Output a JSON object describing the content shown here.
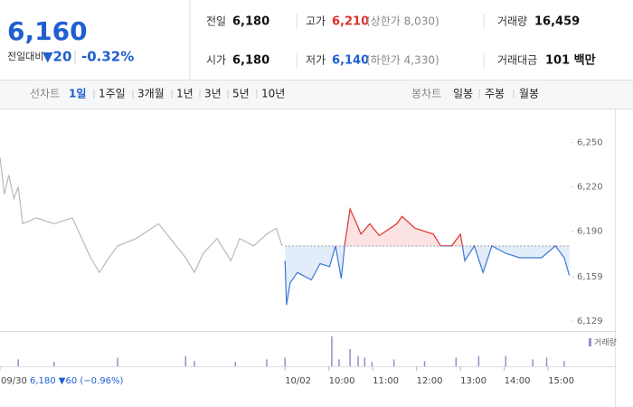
{
  "header": {
    "price": "6,160",
    "change_label": "전일대비",
    "change": "▼20",
    "change_pct": "-0.32%",
    "stats": [
      {
        "label": "전일",
        "value": "6,180"
      },
      {
        "label": "고가",
        "value": "6,210",
        "note": "(상한가 8,030)"
      },
      {
        "label": "거래량",
        "value": "16,459"
      },
      {
        "label": "시가",
        "value": "6,180"
      },
      {
        "label": "저가",
        "value": "6,140",
        "note": "(하한가 4,330)"
      },
      {
        "label": "거래대금",
        "value": "101 백만"
      }
    ]
  },
  "tabs": {
    "line_label": "선차트",
    "line": [
      "1일",
      "1주일",
      "3개월",
      "1년",
      "3년",
      "5년",
      "10년"
    ],
    "candle_label": "봉차트",
    "candle": [
      "일봉",
      "주봉",
      "월봉"
    ]
  },
  "chart_data": {
    "type": "line",
    "xlim": [
      -390,
      392
    ],
    "ylim": [
      6123,
      6270
    ],
    "yticks": [
      {
        "value": 6250,
        "label": "6,250"
      },
      {
        "value": 6220,
        "label": "6,220"
      },
      {
        "value": 6190,
        "label": "6,190"
      },
      {
        "value": 6159,
        "label": "6,159"
      },
      {
        "value": 6129,
        "label": "6,129"
      }
    ],
    "xticks": [
      {
        "value": -390,
        "label": "09/30"
      },
      {
        "value": 0,
        "label": "10/02"
      },
      {
        "value": 60,
        "label": "10:00"
      },
      {
        "value": 120,
        "label": "11:00"
      },
      {
        "value": 180,
        "label": "12:00"
      },
      {
        "value": 240,
        "label": "13:00"
      },
      {
        "value": 300,
        "label": "14:00"
      },
      {
        "value": 360,
        "label": "15:00"
      }
    ],
    "annotation": "6,180 ▼60 (−0.96%)",
    "baseline": 6180,
    "up_color": "#e0302b",
    "down_color": "#3b78d8",
    "up_fill": "#fbe3e3",
    "down_fill": "#e3ecf9",
    "series": [
      {
        "color": "#b9b9b9",
        "x": [
          -390,
          -384,
          -378,
          -371,
          -365,
          -359,
          -340,
          -316,
          -291,
          -266,
          -254,
          -241,
          -229,
          -204,
          -173,
          -149,
          -136,
          -124,
          -112,
          -93,
          -74,
          -62,
          -43,
          -25,
          -12,
          -4
        ],
        "values": [
          6240,
          6215,
          6228,
          6212,
          6220,
          6195,
          6199,
          6195,
          6199,
          6172,
          6162,
          6172,
          6180,
          6185,
          6195,
          6180,
          6172,
          6162,
          6175,
          6185,
          6170,
          6185,
          6180,
          6188,
          6192,
          6180
        ]
      },
      {
        "color": "split",
        "x": [
          0,
          2,
          7,
          17,
          36,
          48,
          61,
          69,
          77,
          82,
          89,
          98,
          104,
          116,
          129,
          153,
          160,
          178,
          203,
          213,
          228,
          240,
          246,
          259,
          271,
          283,
          302,
          321,
          351,
          370,
          382,
          389
        ],
        "values": [
          6170,
          6140,
          6155,
          6162,
          6157,
          6168,
          6166,
          6180,
          6158,
          6182,
          6205,
          6195,
          6188,
          6195,
          6187,
          6195,
          6200,
          6192,
          6188,
          6180,
          6180,
          6188,
          6170,
          6180,
          6162,
          6180,
          6175,
          6172,
          6172,
          6180,
          6172,
          6160
        ]
      }
    ],
    "volume": {
      "name": "거래량",
      "color": "#9b8bc9",
      "ylim": [
        0,
        40
      ],
      "x": [
        -365,
        -316,
        -229,
        -136,
        -124,
        -68,
        -25,
        0,
        64,
        74,
        89,
        100,
        109,
        119,
        149,
        191,
        234,
        265,
        302,
        339,
        358,
        382
      ],
      "values": [
        8,
        5,
        10,
        12,
        6,
        5,
        8,
        10,
        35,
        8,
        20,
        12,
        10,
        5,
        8,
        6,
        10,
        12,
        12,
        8,
        10,
        6
      ]
    }
  }
}
